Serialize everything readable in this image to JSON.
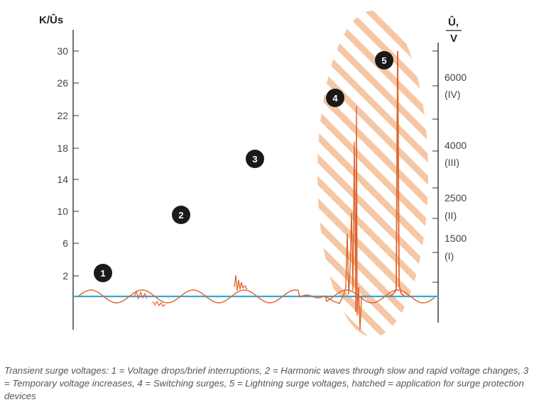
{
  "left_axis": {
    "unit": "K/Ûs",
    "ticks": [
      "30",
      "26",
      "22",
      "18",
      "14",
      "10",
      "6",
      "2"
    ]
  },
  "right_axis": {
    "unit_top": "Û,",
    "unit_bottom": "V",
    "ticks": [
      {
        "value": "6000",
        "cat": "(IV)"
      },
      {
        "value": "4000",
        "cat": "(III)"
      },
      {
        "value": "2500",
        "cat": "(II)"
      },
      {
        "value": "1500",
        "cat": "(I)"
      }
    ]
  },
  "markers": [
    "1",
    "2",
    "3",
    "4",
    "5"
  ],
  "caption": "Transient surge voltages: 1 = Voltage drops/brief interruptions, 2 = Harmonic waves through slow and rapid voltage changes, 3 = Temporary voltage increases, 4 = Switching surges, 5 = Lightning surge voltages, hatched = application for surge protection devices",
  "colors": {
    "baseline": "#3ba6d4",
    "wave": "#e0622a",
    "hatch": "#f6c7a4",
    "marker": "#1a1a1a",
    "axis": "#333333"
  }
}
